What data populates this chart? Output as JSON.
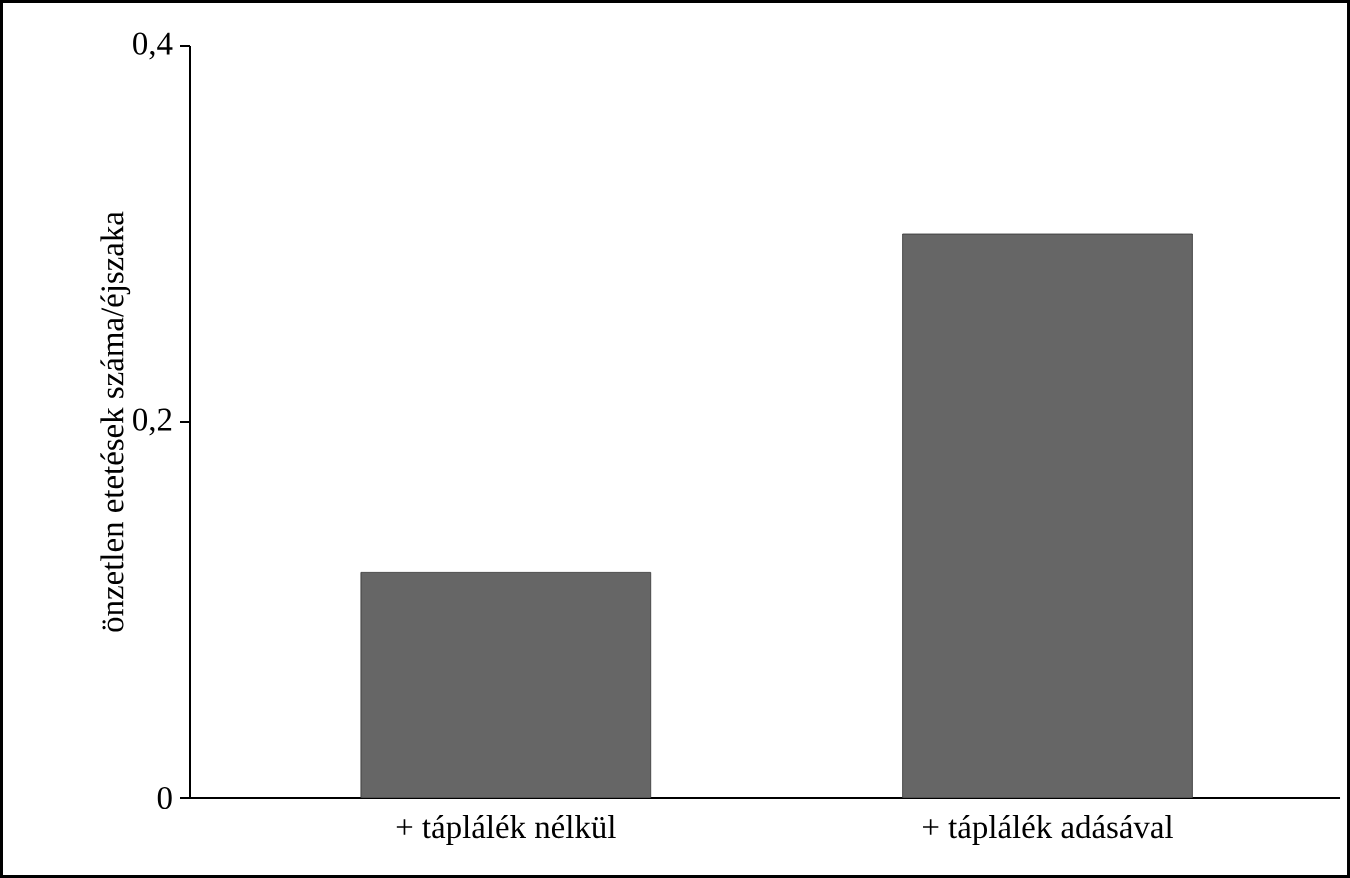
{
  "chart_data": {
    "type": "bar",
    "ylabel": "önzetlen etetések száma/éjszaka",
    "categories": [
      "+ táplálék nélkül",
      "+ táplálék adásával"
    ],
    "values": [
      0.12,
      0.3
    ],
    "color": "#666666",
    "ylim": [
      0,
      0.4
    ],
    "yticks": [
      0,
      {
        "value": 0.2,
        "label": "0,2"
      },
      {
        "value": 0.4,
        "label": "0,4"
      }
    ],
    "grid": false
  }
}
